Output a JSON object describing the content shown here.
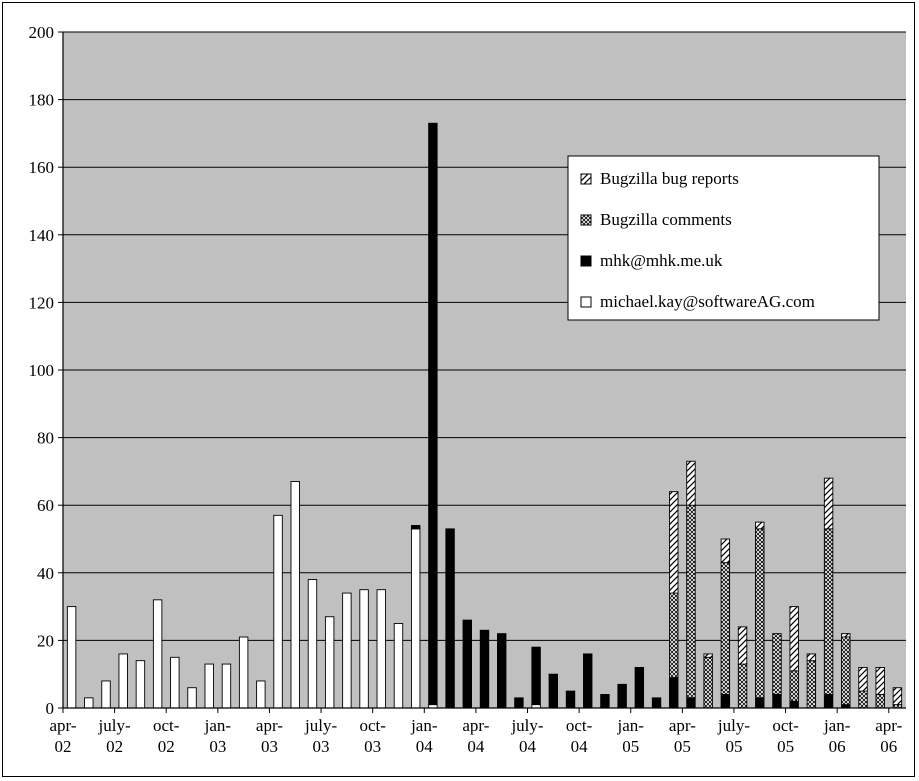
{
  "chart_data": {
    "type": "bar",
    "stacked": true,
    "ylim": [
      0,
      200
    ],
    "yticks": [
      0,
      20,
      40,
      60,
      80,
      100,
      120,
      140,
      160,
      180,
      200
    ],
    "grid": true,
    "legend_position": "top-right",
    "x_tick_labels": [
      [
        "apr-",
        "02"
      ],
      [
        "july-",
        "02"
      ],
      [
        "oct-",
        "02"
      ],
      [
        "jan-",
        "03"
      ],
      [
        "apr-",
        "03"
      ],
      [
        "july-",
        "03"
      ],
      [
        "oct-",
        "03"
      ],
      [
        "jan-",
        "04"
      ],
      [
        "apr-",
        "04"
      ],
      [
        "july-",
        "04"
      ],
      [
        "oct-",
        "04"
      ],
      [
        "jan-",
        "05"
      ],
      [
        "apr-",
        "05"
      ],
      [
        "july-",
        "05"
      ],
      [
        "oct-",
        "05"
      ],
      [
        "jan-",
        "06"
      ],
      [
        "apr-",
        "06"
      ]
    ],
    "series": [
      {
        "name": "michael.kay@softwareAG.com",
        "values": [
          30,
          3,
          8,
          16,
          14,
          32,
          15,
          6,
          13,
          13,
          21,
          8,
          57,
          67,
          38,
          27,
          34,
          35,
          35,
          25,
          53,
          1,
          0,
          0,
          0,
          0,
          0,
          1,
          0,
          0,
          0,
          0,
          0,
          0,
          0,
          0,
          0,
          0,
          0,
          0,
          0,
          0,
          0,
          0,
          0,
          0,
          0,
          0,
          0
        ]
      },
      {
        "name": "mhk@mhk.me.uk",
        "values": [
          0,
          0,
          0,
          0,
          0,
          0,
          0,
          0,
          0,
          0,
          0,
          0,
          0,
          0,
          0,
          0,
          0,
          0,
          0,
          0,
          1,
          172,
          53,
          26,
          23,
          22,
          3,
          17,
          10,
          5,
          16,
          4,
          7,
          12,
          3,
          9,
          3,
          0,
          4,
          0,
          3,
          4,
          2,
          0,
          4,
          1,
          0,
          0,
          0
        ]
      },
      {
        "name": "Bugzilla comments",
        "values": [
          0,
          0,
          0,
          0,
          0,
          0,
          0,
          0,
          0,
          0,
          0,
          0,
          0,
          0,
          0,
          0,
          0,
          0,
          0,
          0,
          0,
          0,
          0,
          0,
          0,
          0,
          0,
          0,
          0,
          0,
          0,
          0,
          0,
          0,
          0,
          25,
          57,
          15,
          39,
          13,
          50,
          18,
          9,
          14,
          49,
          20,
          5,
          4,
          1
        ]
      },
      {
        "name": "Bugzilla bug reports",
        "values": [
          0,
          0,
          0,
          0,
          0,
          0,
          0,
          0,
          0,
          0,
          0,
          0,
          0,
          0,
          0,
          0,
          0,
          0,
          0,
          0,
          0,
          0,
          0,
          0,
          0,
          0,
          0,
          0,
          0,
          0,
          0,
          0,
          0,
          0,
          0,
          30,
          13,
          1,
          7,
          11,
          2,
          0,
          19,
          2,
          15,
          1,
          7,
          8,
          5
        ]
      }
    ]
  },
  "colors": {
    "plot_background": "#c0c0c0",
    "gridline": "#000000",
    "michael": "#ffffff",
    "mhk": "#000000"
  }
}
